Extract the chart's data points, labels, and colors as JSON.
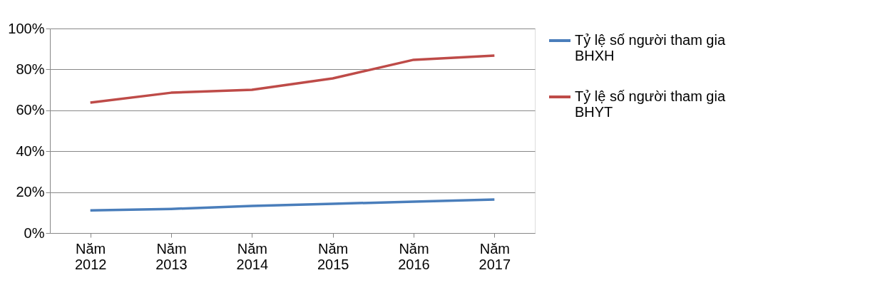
{
  "chart_data": {
    "type": "line",
    "categories": [
      "Năm 2012",
      "Năm 2013",
      "Năm 2014",
      "Năm 2015",
      "Năm 2016",
      "Năm 2017"
    ],
    "series": [
      {
        "name": "Tỷ lệ số người tham gia BHXH",
        "color": "#4a7ebb",
        "values": [
          11.1,
          11.8,
          13.2,
          14.3,
          15.3,
          16.4
        ]
      },
      {
        "name": "Tỷ lệ số người tham gia BHYT",
        "color": "#be4b48",
        "values": [
          63.8,
          68.6,
          70.0,
          75.6,
          84.7,
          86.8
        ]
      }
    ],
    "ylim": [
      0,
      100
    ],
    "yticks": [
      {
        "value": 0,
        "label": "0%"
      },
      {
        "value": 20,
        "label": "20%"
      },
      {
        "value": 40,
        "label": "40%"
      },
      {
        "value": 60,
        "label": "60%"
      },
      {
        "value": 80,
        "label": "80%"
      },
      {
        "value": 100,
        "label": "100%"
      }
    ],
    "grid": "y",
    "legend": "right",
    "marker": "none",
    "line_style": "solid"
  }
}
